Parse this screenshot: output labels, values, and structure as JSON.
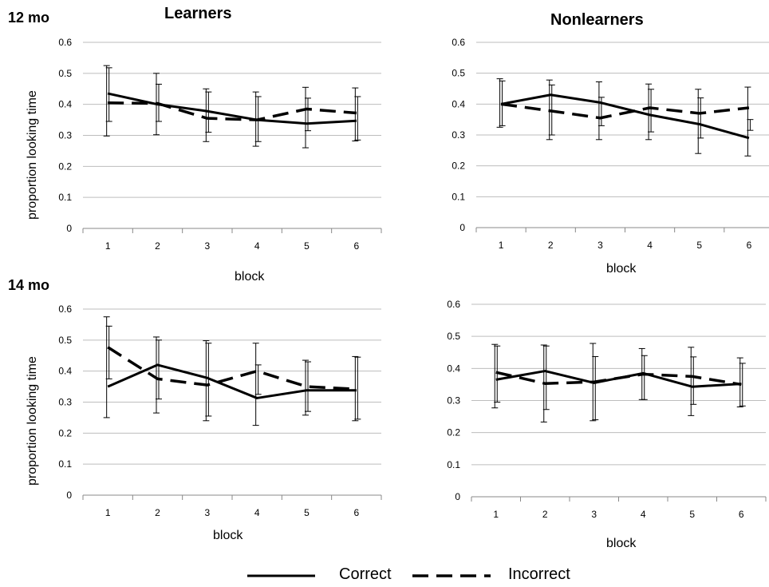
{
  "row_labels": [
    "12 mo",
    "14 mo"
  ],
  "col_titles": [
    "Learners",
    "Nonlearners"
  ],
  "legend": {
    "correct": "Correct",
    "incorrect": "Incorrect"
  },
  "chart_data": [
    {
      "type": "line",
      "xlabel": "block",
      "ylabel": "proportion looking time",
      "ylim": [
        0,
        0.6
      ],
      "yticks": [
        "0",
        "0.1",
        "0.2",
        "0.3",
        "0.4",
        "0.5",
        "0.6"
      ],
      "categories": [
        "1",
        "2",
        "3",
        "4",
        "5",
        "6"
      ],
      "series": [
        {
          "name": "Correct",
          "values": [
            0.435,
            0.4,
            0.378,
            0.35,
            0.338,
            0.347
          ],
          "err_low": [
            0.298,
            0.302,
            0.28,
            0.265,
            0.26,
            0.282
          ],
          "err_high": [
            0.525,
            0.5,
            0.45,
            0.44,
            0.455,
            0.453
          ]
        },
        {
          "name": "Incorrect",
          "values": [
            0.405,
            0.403,
            0.355,
            0.35,
            0.385,
            0.372
          ],
          "err_low": [
            0.345,
            0.345,
            0.31,
            0.28,
            0.315,
            0.285
          ],
          "err_high": [
            0.518,
            0.465,
            0.44,
            0.425,
            0.42,
            0.425
          ]
        }
      ]
    },
    {
      "type": "line",
      "xlabel": "block",
      "ylabel": "",
      "ylim": [
        0,
        0.6
      ],
      "yticks": [
        "0",
        "0.1",
        "0.2",
        "0.3",
        "0.4",
        "0.5",
        "0.6"
      ],
      "categories": [
        "1",
        "2",
        "3",
        "4",
        "5",
        "6"
      ],
      "series": [
        {
          "name": "Correct",
          "values": [
            0.4,
            0.43,
            0.405,
            0.365,
            0.335,
            0.29
          ],
          "err_low": [
            0.325,
            0.285,
            0.285,
            0.285,
            0.24,
            0.232
          ],
          "err_high": [
            0.482,
            0.478,
            0.472,
            0.465,
            0.448,
            0.455
          ]
        },
        {
          "name": "Incorrect",
          "values": [
            0.4,
            0.378,
            0.355,
            0.388,
            0.37,
            0.388
          ],
          "err_low": [
            0.33,
            0.3,
            0.33,
            0.31,
            0.29,
            0.315
          ],
          "err_high": [
            0.475,
            0.462,
            0.422,
            0.448,
            0.42,
            0.35
          ]
        }
      ]
    },
    {
      "type": "line",
      "xlabel": "block",
      "ylabel": "proportion looking time",
      "ylim": [
        0,
        0.6
      ],
      "yticks": [
        "0",
        "0.1",
        "0.2",
        "0.3",
        "0.4",
        "0.5",
        "0.6"
      ],
      "categories": [
        "1",
        "2",
        "3",
        "4",
        "5",
        "6"
      ],
      "series": [
        {
          "name": "Correct",
          "values": [
            0.35,
            0.42,
            0.378,
            0.313,
            0.338,
            0.338
          ],
          "err_low": [
            0.25,
            0.265,
            0.24,
            0.225,
            0.258,
            0.24
          ],
          "err_high": [
            0.575,
            0.51,
            0.498,
            0.49,
            0.435,
            0.447
          ]
        },
        {
          "name": "Incorrect",
          "values": [
            0.477,
            0.375,
            0.355,
            0.4,
            0.35,
            0.342
          ],
          "err_low": [
            0.375,
            0.31,
            0.255,
            0.325,
            0.27,
            0.245
          ],
          "err_high": [
            0.545,
            0.5,
            0.49,
            0.42,
            0.43,
            0.445
          ]
        }
      ]
    },
    {
      "type": "line",
      "xlabel": "block",
      "ylabel": "",
      "ylim": [
        0,
        0.6
      ],
      "yticks": [
        "0",
        "0.1",
        "0.2",
        "0.3",
        "0.4",
        "0.5",
        "0.6"
      ],
      "categories": [
        "1",
        "2",
        "3",
        "4",
        "5",
        "6"
      ],
      "series": [
        {
          "name": "Correct",
          "values": [
            0.365,
            0.392,
            0.355,
            0.385,
            0.343,
            0.352
          ],
          "err_low": [
            0.277,
            0.233,
            0.237,
            0.303,
            0.253,
            0.28
          ],
          "err_high": [
            0.475,
            0.473,
            0.478,
            0.462,
            0.466,
            0.433
          ]
        },
        {
          "name": "Incorrect",
          "values": [
            0.388,
            0.353,
            0.358,
            0.382,
            0.375,
            0.35
          ],
          "err_low": [
            0.295,
            0.272,
            0.24,
            0.303,
            0.288,
            0.283
          ],
          "err_high": [
            0.47,
            0.47,
            0.437,
            0.44,
            0.436,
            0.416
          ]
        }
      ]
    }
  ]
}
